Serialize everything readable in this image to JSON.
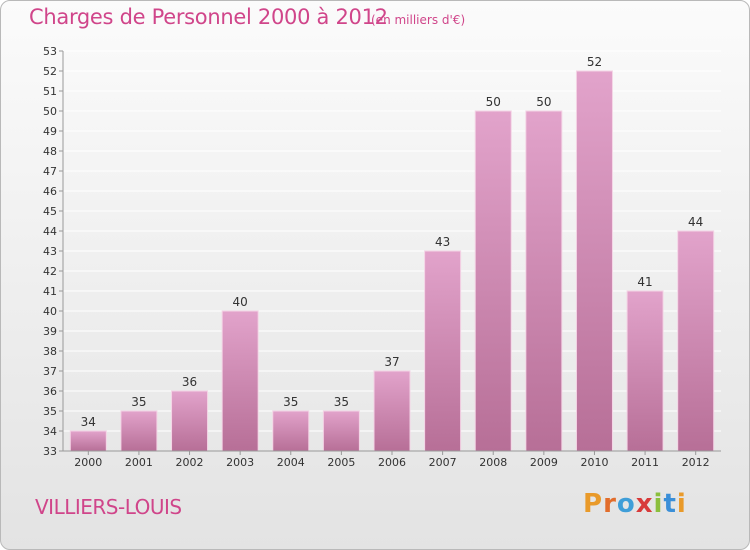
{
  "header": {
    "title": "Charges de Personnel 2000 à 2012",
    "unit": "(en milliers d'€)"
  },
  "footer": {
    "commune": "VILLIERS-LOUIS",
    "brand_letters": [
      "P",
      "r",
      "o",
      "x",
      "i",
      "t",
      "i"
    ]
  },
  "colors": {
    "accent": "#d0458a",
    "bar_top": "#e2a3cb",
    "bar_bottom": "#b76f97",
    "grid": "#ffffff",
    "background": "#ececec"
  },
  "chart_data": {
    "type": "bar",
    "categories": [
      "2000",
      "2001",
      "2002",
      "2003",
      "2004",
      "2005",
      "2006",
      "2007",
      "2008",
      "2009",
      "2010",
      "2011",
      "2012"
    ],
    "values": [
      34,
      35,
      36,
      40,
      35,
      35,
      37,
      43,
      50,
      50,
      52,
      41,
      44
    ],
    "title": "Charges de Personnel 2000 à 2012",
    "subtitle": "(en milliers d'€)",
    "xlabel": "",
    "ylabel": "",
    "ylim": [
      33,
      53
    ],
    "ytick_step": 1,
    "grid": true,
    "data_labels": true,
    "legend": "none"
  }
}
